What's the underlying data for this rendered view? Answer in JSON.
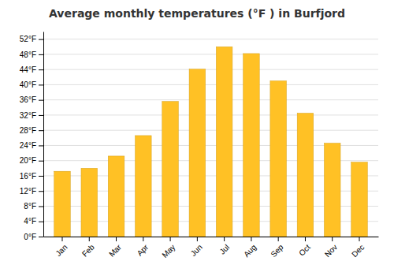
{
  "chart_data": {
    "type": "bar",
    "title": "Average monthly temperatures (°F ) in Burfjord",
    "categories": [
      "Jan",
      "Feb",
      "Mar",
      "Apr",
      "May",
      "Jun",
      "Jul",
      "Aug",
      "Sep",
      "Oct",
      "Nov",
      "Dec"
    ],
    "values": [
      17.2,
      18.0,
      21.2,
      26.6,
      35.6,
      44.1,
      50.0,
      48.2,
      41.0,
      32.5,
      24.6,
      19.6
    ],
    "color": "#FFC125",
    "ylim": [
      0,
      54
    ],
    "yticks": [
      {
        "value": 0,
        "label": "0°F"
      },
      {
        "value": 4,
        "label": "4°F"
      },
      {
        "value": 8,
        "label": "8°F"
      },
      {
        "value": 12,
        "label": "12°F"
      },
      {
        "value": 16,
        "label": "16°F"
      },
      {
        "value": 20,
        "label": "20°F"
      },
      {
        "value": 24,
        "label": "24°F"
      },
      {
        "value": 28,
        "label": "28°F"
      },
      {
        "value": 32,
        "label": "32°F"
      },
      {
        "value": 36,
        "label": "36°F"
      },
      {
        "value": 40,
        "label": "40°F"
      },
      {
        "value": 44,
        "label": "44°F"
      },
      {
        "value": 48,
        "label": "48°F"
      },
      {
        "value": 52,
        "label": "52°F"
      }
    ],
    "grid": true
  }
}
